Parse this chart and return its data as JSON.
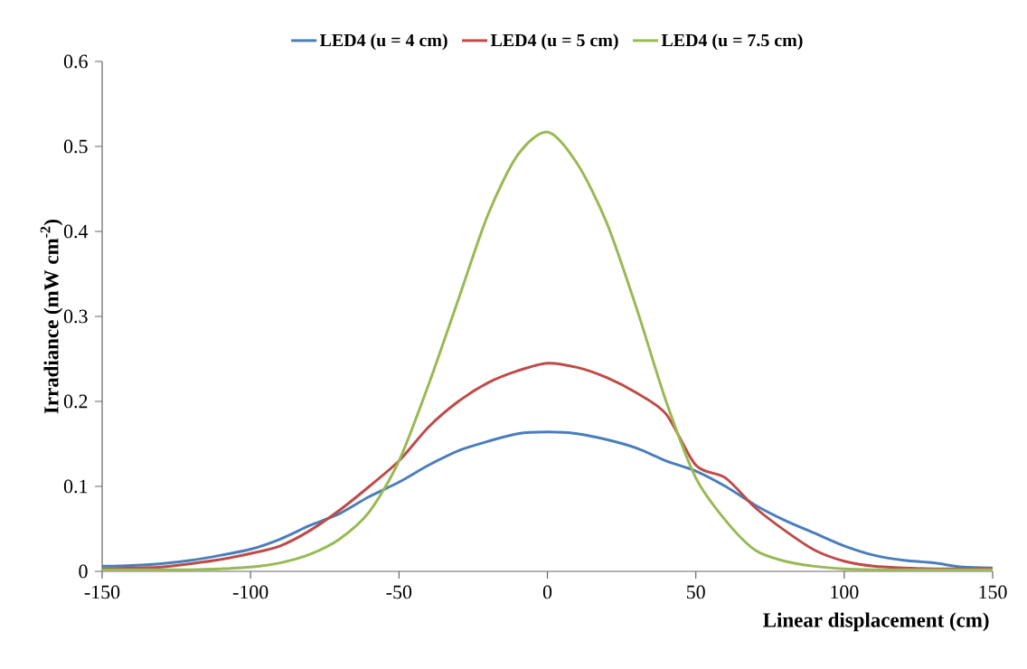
{
  "chart_data": {
    "type": "line",
    "xlabel": "Linear displacement (cm)",
    "ylabel": "Irradiance (mW cm$^{-2}$)",
    "x": [
      -150,
      -140,
      -130,
      -120,
      -110,
      -100,
      -90,
      -80,
      -70,
      -60,
      -50,
      -40,
      -30,
      -20,
      -10,
      0,
      10,
      20,
      30,
      40,
      50,
      60,
      70,
      80,
      90,
      100,
      110,
      120,
      130,
      140,
      150
    ],
    "series": [
      {
        "name": "LED4 (u = 4 cm)",
        "color": "#4a7ebb",
        "values": [
          0.006,
          0.007,
          0.009,
          0.013,
          0.019,
          0.026,
          0.038,
          0.054,
          0.068,
          0.088,
          0.105,
          0.125,
          0.142,
          0.153,
          0.162,
          0.164,
          0.162,
          0.155,
          0.145,
          0.13,
          0.118,
          0.1,
          0.078,
          0.06,
          0.045,
          0.03,
          0.019,
          0.013,
          0.01,
          0.005,
          0.004
        ]
      },
      {
        "name": "LED4 (u = 5 cm)",
        "color": "#be4b48",
        "values": [
          0.003,
          0.004,
          0.005,
          0.009,
          0.014,
          0.021,
          0.03,
          0.048,
          0.072,
          0.1,
          0.13,
          0.17,
          0.2,
          0.222,
          0.236,
          0.245,
          0.24,
          0.228,
          0.21,
          0.185,
          0.125,
          0.11,
          0.075,
          0.048,
          0.025,
          0.012,
          0.006,
          0.004,
          0.003,
          0.003,
          0.003
        ]
      },
      {
        "name": "LED4 (u = 7.5 cm)",
        "color": "#98b954",
        "values": [
          0.002,
          0.002,
          0.002,
          0.002,
          0.003,
          0.005,
          0.01,
          0.02,
          0.038,
          0.07,
          0.13,
          0.22,
          0.32,
          0.42,
          0.49,
          0.517,
          0.48,
          0.41,
          0.31,
          0.2,
          0.11,
          0.06,
          0.025,
          0.012,
          0.006,
          0.003,
          0.002,
          0.002,
          0.002,
          0.002,
          0.002
        ]
      }
    ],
    "xlim": [
      -150,
      150
    ],
    "ylim": [
      0,
      0.6
    ],
    "xticks": [
      -150,
      -100,
      -50,
      0,
      50,
      100,
      150
    ],
    "yticks": [
      0,
      0.1,
      0.2,
      0.3,
      0.4,
      0.5,
      0.6
    ],
    "grid": false,
    "legend": "top",
    "line_style": "solid"
  }
}
